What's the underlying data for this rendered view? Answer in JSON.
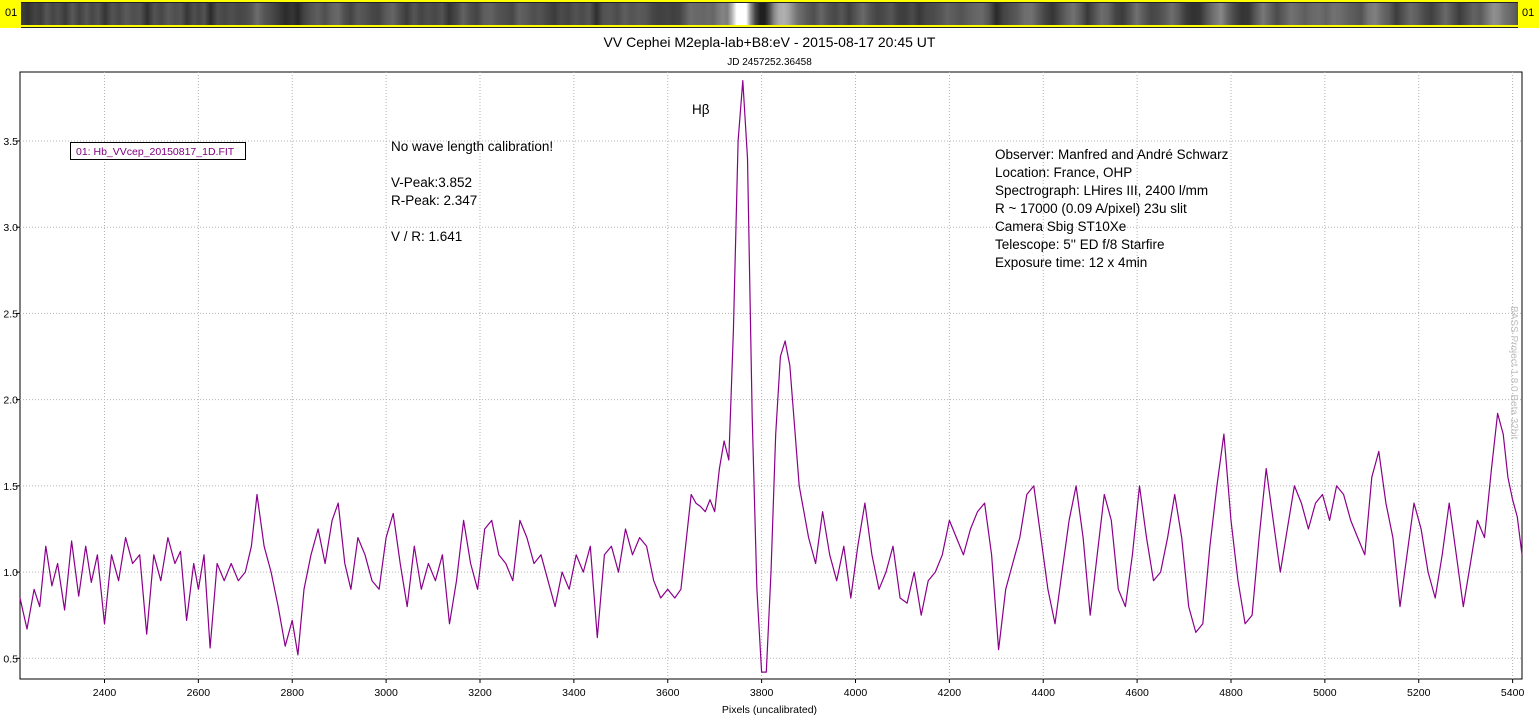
{
  "strip": {
    "left_label": "01",
    "right_label": "01"
  },
  "chart_data": {
    "type": "line",
    "title": "VV Cephei M2epla-lab+B8:eV - 2015-08-17 20:45 UT",
    "subtitle": "JD 2457252.36458",
    "xlabel": "Pixels (uncalibrated)",
    "ylabel": "",
    "xlim": [
      2220,
      5420
    ],
    "ylim": [
      0.38,
      3.9
    ],
    "x_ticks": [
      2400,
      2600,
      2800,
      3000,
      3200,
      3400,
      3600,
      3800,
      4000,
      4200,
      4400,
      4600,
      4800,
      5000,
      5200,
      5400
    ],
    "y_ticks": [
      0.5,
      1.0,
      1.5,
      2.0,
      2.5,
      3.0,
      3.5
    ],
    "y_tick_labels": [
      "0.5",
      "1.0",
      "1.5",
      "2.0",
      "2.5",
      "3.0",
      "3.5"
    ],
    "grid": true,
    "legend_position": "top-left",
    "series": [
      {
        "name": "01: Hb_VVcep_20150817_1D.FIT",
        "color": "#8b008b",
        "points": [
          [
            2220,
            0.85
          ],
          [
            2235,
            0.67
          ],
          [
            2250,
            0.9
          ],
          [
            2262,
            0.8
          ],
          [
            2275,
            1.15
          ],
          [
            2288,
            0.92
          ],
          [
            2300,
            1.05
          ],
          [
            2315,
            0.78
          ],
          [
            2330,
            1.18
          ],
          [
            2345,
            0.86
          ],
          [
            2360,
            1.15
          ],
          [
            2372,
            0.94
          ],
          [
            2385,
            1.1
          ],
          [
            2400,
            0.7
          ],
          [
            2415,
            1.1
          ],
          [
            2430,
            0.95
          ],
          [
            2445,
            1.2
          ],
          [
            2460,
            1.05
          ],
          [
            2475,
            1.1
          ],
          [
            2490,
            0.64
          ],
          [
            2505,
            1.1
          ],
          [
            2520,
            0.95
          ],
          [
            2535,
            1.2
          ],
          [
            2550,
            1.05
          ],
          [
            2562,
            1.12
          ],
          [
            2575,
            0.72
          ],
          [
            2590,
            1.05
          ],
          [
            2600,
            0.9
          ],
          [
            2612,
            1.1
          ],
          [
            2625,
            0.56
          ],
          [
            2640,
            1.05
          ],
          [
            2655,
            0.95
          ],
          [
            2670,
            1.05
          ],
          [
            2685,
            0.95
          ],
          [
            2700,
            1.0
          ],
          [
            2713,
            1.15
          ],
          [
            2725,
            1.45
          ],
          [
            2740,
            1.15
          ],
          [
            2755,
            1.0
          ],
          [
            2770,
            0.8
          ],
          [
            2785,
            0.57
          ],
          [
            2800,
            0.72
          ],
          [
            2812,
            0.52
          ],
          [
            2825,
            0.9
          ],
          [
            2840,
            1.1
          ],
          [
            2855,
            1.25
          ],
          [
            2870,
            1.05
          ],
          [
            2885,
            1.3
          ],
          [
            2898,
            1.4
          ],
          [
            2912,
            1.05
          ],
          [
            2925,
            0.9
          ],
          [
            2940,
            1.2
          ],
          [
            2955,
            1.1
          ],
          [
            2970,
            0.95
          ],
          [
            2985,
            0.9
          ],
          [
            3000,
            1.2
          ],
          [
            3015,
            1.34
          ],
          [
            3030,
            1.05
          ],
          [
            3045,
            0.8
          ],
          [
            3060,
            1.15
          ],
          [
            3075,
            0.9
          ],
          [
            3090,
            1.05
          ],
          [
            3105,
            0.95
          ],
          [
            3120,
            1.1
          ],
          [
            3135,
            0.7
          ],
          [
            3150,
            0.95
          ],
          [
            3165,
            1.3
          ],
          [
            3180,
            1.05
          ],
          [
            3195,
            0.9
          ],
          [
            3210,
            1.25
          ],
          [
            3225,
            1.3
          ],
          [
            3240,
            1.1
          ],
          [
            3255,
            1.05
          ],
          [
            3270,
            0.95
          ],
          [
            3285,
            1.3
          ],
          [
            3300,
            1.2
          ],
          [
            3315,
            1.05
          ],
          [
            3330,
            1.1
          ],
          [
            3345,
            0.95
          ],
          [
            3360,
            0.8
          ],
          [
            3375,
            1.0
          ],
          [
            3390,
            0.9
          ],
          [
            3405,
            1.1
          ],
          [
            3420,
            1.0
          ],
          [
            3435,
            1.15
          ],
          [
            3450,
            0.62
          ],
          [
            3465,
            1.1
          ],
          [
            3480,
            1.15
          ],
          [
            3495,
            1.0
          ],
          [
            3510,
            1.25
          ],
          [
            3525,
            1.1
          ],
          [
            3540,
            1.2
          ],
          [
            3555,
            1.15
          ],
          [
            3570,
            0.95
          ],
          [
            3585,
            0.85
          ],
          [
            3600,
            0.9
          ],
          [
            3615,
            0.85
          ],
          [
            3628,
            0.9
          ],
          [
            3640,
            1.2
          ],
          [
            3650,
            1.45
          ],
          [
            3660,
            1.4
          ],
          [
            3670,
            1.38
          ],
          [
            3680,
            1.35
          ],
          [
            3690,
            1.42
          ],
          [
            3700,
            1.35
          ],
          [
            3710,
            1.6
          ],
          [
            3720,
            1.76
          ],
          [
            3730,
            1.65
          ],
          [
            3740,
            2.4
          ],
          [
            3750,
            3.5
          ],
          [
            3760,
            3.85
          ],
          [
            3770,
            3.4
          ],
          [
            3780,
            1.9
          ],
          [
            3790,
            0.9
          ],
          [
            3800,
            0.42
          ],
          [
            3810,
            0.42
          ],
          [
            3820,
            1.0
          ],
          [
            3830,
            1.8
          ],
          [
            3840,
            2.25
          ],
          [
            3850,
            2.34
          ],
          [
            3860,
            2.2
          ],
          [
            3870,
            1.85
          ],
          [
            3880,
            1.5
          ],
          [
            3890,
            1.35
          ],
          [
            3900,
            1.2
          ],
          [
            3915,
            1.05
          ],
          [
            3930,
            1.35
          ],
          [
            3945,
            1.1
          ],
          [
            3960,
            0.95
          ],
          [
            3975,
            1.15
          ],
          [
            3990,
            0.85
          ],
          [
            4005,
            1.15
          ],
          [
            4020,
            1.4
          ],
          [
            4035,
            1.1
          ],
          [
            4050,
            0.9
          ],
          [
            4065,
            1.0
          ],
          [
            4080,
            1.15
          ],
          [
            4095,
            0.85
          ],
          [
            4110,
            0.82
          ],
          [
            4125,
            1.0
          ],
          [
            4140,
            0.75
          ],
          [
            4155,
            0.95
          ],
          [
            4170,
            1.0
          ],
          [
            4185,
            1.1
          ],
          [
            4200,
            1.3
          ],
          [
            4215,
            1.2
          ],
          [
            4230,
            1.1
          ],
          [
            4245,
            1.25
          ],
          [
            4260,
            1.35
          ],
          [
            4275,
            1.4
          ],
          [
            4290,
            1.1
          ],
          [
            4305,
            0.55
          ],
          [
            4320,
            0.9
          ],
          [
            4335,
            1.05
          ],
          [
            4350,
            1.2
          ],
          [
            4365,
            1.45
          ],
          [
            4380,
            1.5
          ],
          [
            4395,
            1.2
          ],
          [
            4410,
            0.9
          ],
          [
            4425,
            0.7
          ],
          [
            4440,
            1.0
          ],
          [
            4455,
            1.3
          ],
          [
            4470,
            1.5
          ],
          [
            4485,
            1.2
          ],
          [
            4500,
            0.75
          ],
          [
            4515,
            1.1
          ],
          [
            4530,
            1.45
          ],
          [
            4545,
            1.3
          ],
          [
            4560,
            0.9
          ],
          [
            4575,
            0.8
          ],
          [
            4590,
            1.1
          ],
          [
            4605,
            1.5
          ],
          [
            4620,
            1.2
          ],
          [
            4635,
            0.95
          ],
          [
            4650,
            1.0
          ],
          [
            4665,
            1.2
          ],
          [
            4680,
            1.45
          ],
          [
            4695,
            1.2
          ],
          [
            4710,
            0.8
          ],
          [
            4725,
            0.65
          ],
          [
            4740,
            0.7
          ],
          [
            4755,
            1.15
          ],
          [
            4770,
            1.5
          ],
          [
            4785,
            1.8
          ],
          [
            4800,
            1.3
          ],
          [
            4815,
            0.95
          ],
          [
            4830,
            0.7
          ],
          [
            4845,
            0.75
          ],
          [
            4860,
            1.2
          ],
          [
            4875,
            1.6
          ],
          [
            4890,
            1.3
          ],
          [
            4905,
            1.0
          ],
          [
            4920,
            1.25
          ],
          [
            4935,
            1.5
          ],
          [
            4950,
            1.4
          ],
          [
            4965,
            1.25
          ],
          [
            4980,
            1.4
          ],
          [
            4995,
            1.45
          ],
          [
            5010,
            1.3
          ],
          [
            5025,
            1.5
          ],
          [
            5040,
            1.45
          ],
          [
            5055,
            1.3
          ],
          [
            5070,
            1.2
          ],
          [
            5085,
            1.1
          ],
          [
            5100,
            1.55
          ],
          [
            5115,
            1.7
          ],
          [
            5130,
            1.4
          ],
          [
            5145,
            1.2
          ],
          [
            5160,
            0.8
          ],
          [
            5175,
            1.1
          ],
          [
            5190,
            1.4
          ],
          [
            5205,
            1.25
          ],
          [
            5220,
            1.0
          ],
          [
            5235,
            0.85
          ],
          [
            5250,
            1.1
          ],
          [
            5265,
            1.4
          ],
          [
            5280,
            1.1
          ],
          [
            5295,
            0.8
          ],
          [
            5310,
            1.05
          ],
          [
            5325,
            1.3
          ],
          [
            5340,
            1.2
          ],
          [
            5355,
            1.6
          ],
          [
            5368,
            1.92
          ],
          [
            5380,
            1.8
          ],
          [
            5390,
            1.55
          ],
          [
            5400,
            1.42
          ],
          [
            5410,
            1.32
          ],
          [
            5420,
            1.1
          ]
        ]
      }
    ],
    "annotations": {
      "hbeta": "Hβ",
      "calib_note": "No wave length calibration!",
      "v_peak": "V-Peak:3.852",
      "r_peak": "R-Peak: 2.347",
      "ratio": "V / R: 1.641",
      "observer": "Observer: Manfred and André Schwarz",
      "location": "Location: France, OHP",
      "spectrograph": "Spectrograph: LHires III, 2400 l/mm",
      "resolution": "R ~ 17000 (0.09 A/pixel) 23u slit",
      "camera": "Camera Sbig ST10Xe",
      "telescope": "Telescope: 5'' ED f/8 Starfire",
      "exposure": "Exposure time: 12 x 4min"
    }
  },
  "watermark": "BASS Project 1.8.0 Beta 32bit"
}
